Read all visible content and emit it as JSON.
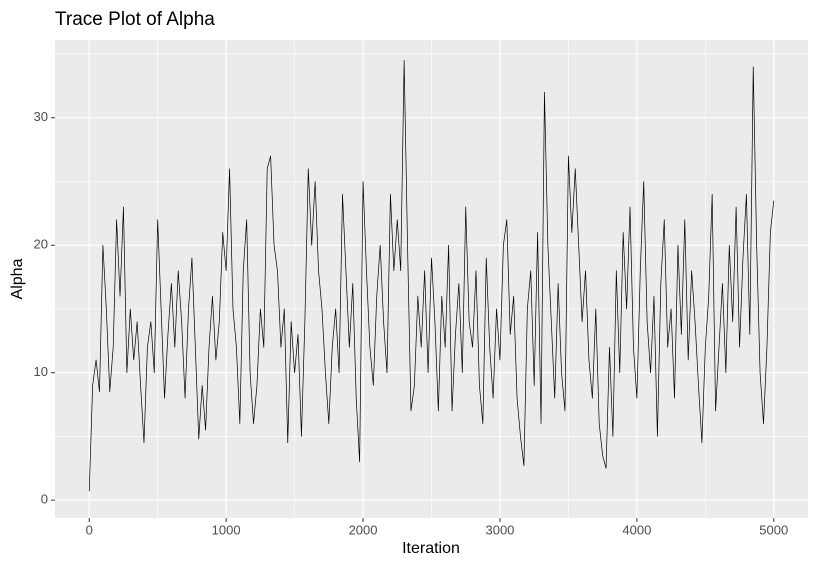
{
  "chart_data": {
    "type": "line",
    "title": "Trace Plot of Alpha",
    "xlabel": "Iteration",
    "ylabel": "Alpha",
    "color": "#000000",
    "grid": true,
    "xlim": [
      -250,
      5250
    ],
    "ylim": [
      -1.4,
      36.1
    ],
    "xticks": [
      0,
      1000,
      2000,
      3000,
      4000,
      5000
    ],
    "yticks": [
      0,
      10,
      20,
      30
    ],
    "xminor": [
      500,
      1500,
      2500,
      3500,
      4500
    ],
    "yminor": [
      5,
      15,
      25,
      35
    ],
    "x": [
      0,
      25,
      50,
      75,
      100,
      125,
      150,
      175,
      200,
      225,
      250,
      275,
      300,
      325,
      350,
      375,
      400,
      425,
      450,
      475,
      500,
      525,
      550,
      575,
      600,
      625,
      650,
      675,
      700,
      725,
      750,
      775,
      800,
      825,
      850,
      875,
      900,
      925,
      950,
      975,
      1000,
      1025,
      1050,
      1075,
      1100,
      1125,
      1150,
      1175,
      1200,
      1225,
      1250,
      1275,
      1300,
      1325,
      1350,
      1375,
      1400,
      1425,
      1450,
      1475,
      1500,
      1525,
      1550,
      1575,
      1600,
      1625,
      1650,
      1675,
      1700,
      1725,
      1750,
      1775,
      1800,
      1825,
      1850,
      1875,
      1900,
      1925,
      1950,
      1975,
      2000,
      2025,
      2050,
      2075,
      2100,
      2125,
      2150,
      2175,
      2200,
      2225,
      2250,
      2275,
      2300,
      2325,
      2350,
      2375,
      2400,
      2425,
      2450,
      2475,
      2500,
      2525,
      2550,
      2575,
      2600,
      2625,
      2650,
      2675,
      2700,
      2725,
      2750,
      2775,
      2800,
      2825,
      2850,
      2875,
      2900,
      2925,
      2950,
      2975,
      3000,
      3025,
      3050,
      3075,
      3100,
      3125,
      3150,
      3175,
      3200,
      3225,
      3250,
      3275,
      3300,
      3325,
      3350,
      3375,
      3400,
      3425,
      3450,
      3475,
      3500,
      3525,
      3550,
      3575,
      3600,
      3625,
      3650,
      3675,
      3700,
      3725,
      3750,
      3775,
      3800,
      3825,
      3850,
      3875,
      3900,
      3925,
      3950,
      3975,
      4000,
      4025,
      4050,
      4075,
      4100,
      4125,
      4150,
      4175,
      4200,
      4225,
      4250,
      4275,
      4300,
      4325,
      4350,
      4375,
      4400,
      4425,
      4450,
      4475,
      4500,
      4525,
      4550,
      4575,
      4600,
      4625,
      4650,
      4675,
      4700,
      4725,
      4750,
      4775,
      4800,
      4825,
      4850,
      4875,
      4900,
      4925,
      4950,
      4975,
      5000
    ],
    "values": [
      0.7,
      9,
      11,
      8.5,
      20,
      15,
      8.5,
      12,
      22,
      16,
      23,
      10,
      15,
      11,
      14,
      9,
      4.5,
      12,
      14,
      10,
      22,
      15,
      8,
      13,
      17,
      12,
      18,
      14,
      8,
      15,
      19,
      12,
      4.8,
      9,
      5.5,
      12,
      16,
      11,
      14,
      21,
      18,
      26,
      15,
      12,
      6,
      18,
      22,
      10,
      6,
      9,
      15,
      12,
      26,
      27,
      20,
      18,
      12,
      15,
      4.5,
      14,
      10,
      13,
      5,
      14,
      26,
      20,
      25,
      18,
      15,
      10,
      6,
      12,
      15,
      10,
      24,
      18,
      12,
      17,
      8,
      3,
      25,
      18,
      12,
      9,
      16,
      20,
      14,
      10,
      24,
      18,
      22,
      18,
      34.5,
      20,
      7,
      9,
      16,
      12,
      18,
      10,
      19,
      14,
      7,
      16,
      12,
      20,
      7,
      13,
      17,
      10,
      23,
      14,
      12,
      18,
      9,
      6,
      19,
      12,
      8,
      15,
      11,
      20,
      22,
      13,
      16,
      8,
      5,
      2.7,
      15,
      18,
      9,
      21,
      6,
      32,
      20,
      14,
      8,
      17,
      10,
      7,
      27,
      21,
      26,
      20,
      14,
      18,
      11,
      8,
      15,
      6,
      3.5,
      2.5,
      12,
      5,
      18,
      10,
      21,
      15,
      23,
      12,
      8,
      18,
      25,
      14,
      10,
      16,
      5,
      17,
      22,
      12,
      15,
      8,
      20,
      13,
      22,
      11,
      18,
      14,
      9,
      4.5,
      12,
      16,
      24,
      7,
      12,
      17,
      10,
      20,
      14,
      23,
      12,
      19,
      24,
      13,
      34,
      20,
      10,
      6,
      12,
      21,
      23.5
    ]
  }
}
